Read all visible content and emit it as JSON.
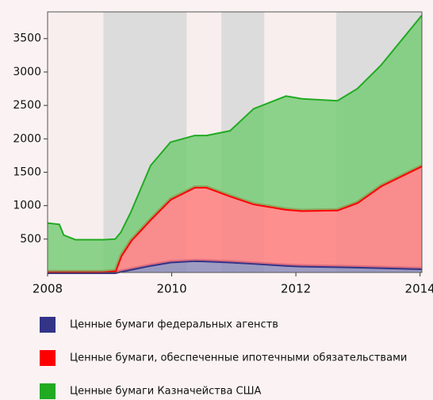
{
  "chart_data": {
    "type": "stacked_area",
    "x": [
      2008.0,
      2008.19,
      2008.26,
      2008.45,
      2008.9,
      2009.09,
      2009.18,
      2009.34,
      2009.66,
      2009.98,
      2010.37,
      2010.56,
      2010.94,
      2011.32,
      2011.84,
      2012.09,
      2012.67,
      2012.99,
      2013.37,
      2014.03
    ],
    "series": [
      {
        "name": "Ценные бумаги федеральных агенств",
        "color": "#333388",
        "fill": "#8a8ab8",
        "values": [
          0,
          0,
          0,
          0,
          0,
          0,
          20,
          50,
          110,
          160,
          180,
          175,
          160,
          140,
          110,
          100,
          90,
          85,
          75,
          60
        ]
      },
      {
        "name": "Ценные бумаги, обеспеченные ипотечными обязательствами",
        "color": "#ff0000",
        "fill": "#ff7a7a",
        "values": [
          15,
          15,
          15,
          15,
          15,
          30,
          230,
          430,
          690,
          940,
          1100,
          1105,
          990,
          890,
          840,
          830,
          850,
          965,
          1225,
          1540
        ]
      },
      {
        "name": "Ценные бумаги Казначейства США",
        "color": "#22aa22",
        "fill": "#74cc74",
        "values": [
          725,
          705,
          545,
          475,
          475,
          470,
          350,
          420,
          800,
          850,
          770,
          770,
          970,
          1420,
          1690,
          1670,
          1630,
          1700,
          1800,
          2250
        ]
      }
    ],
    "shaded_periods": [
      [
        2008.9,
        2010.24
      ],
      [
        2010.8,
        2011.49
      ],
      [
        2012.65,
        2014.03
      ]
    ],
    "xlim": [
      2008,
      2014.03
    ],
    "xticks": [
      2008,
      2010,
      2012,
      2014
    ],
    "ylim": [
      0,
      3900
    ],
    "yticks": [
      500,
      1000,
      1500,
      2000,
      2500,
      3000,
      3500
    ]
  }
}
